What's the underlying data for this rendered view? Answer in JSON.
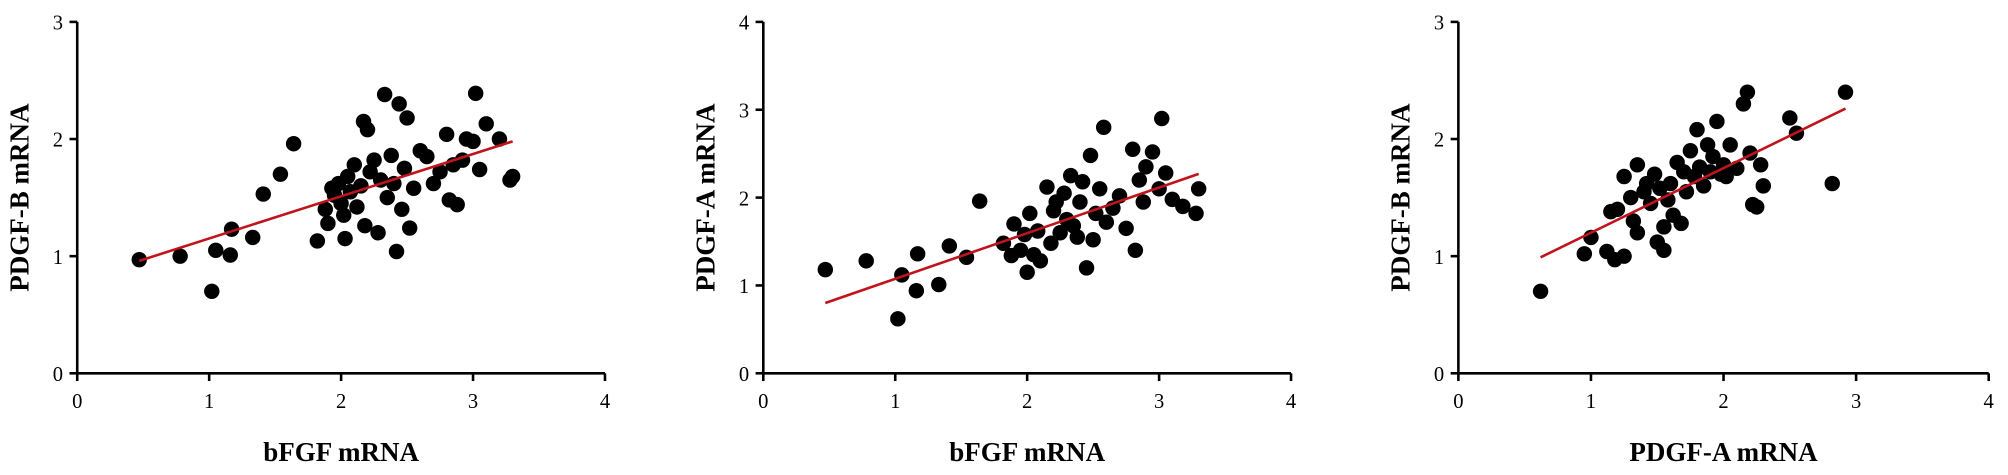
{
  "chart_data": [
    {
      "type": "scatter",
      "xlabel": "bFGF mRNA",
      "ylabel": "PDGF-B mRNA",
      "color": "#000000",
      "xlim": [
        0,
        4
      ],
      "ylim": [
        0,
        3
      ],
      "xticks": [
        0,
        1,
        2,
        3,
        4
      ],
      "yticks": [
        0,
        1,
        2,
        3
      ],
      "x": [
        0.47,
        0.78,
        1.02,
        1.05,
        1.16,
        1.17,
        1.33,
        1.41,
        1.54,
        1.64,
        1.82,
        1.88,
        1.9,
        1.93,
        1.95,
        1.98,
        2.0,
        2.02,
        2.03,
        2.05,
        2.07,
        2.1,
        2.12,
        2.15,
        2.17,
        2.18,
        2.2,
        2.22,
        2.25,
        2.28,
        2.3,
        2.33,
        2.35,
        2.38,
        2.4,
        2.42,
        2.44,
        2.46,
        2.48,
        2.5,
        2.52,
        2.55,
        2.6,
        2.65,
        2.7,
        2.75,
        2.8,
        2.82,
        2.85,
        2.88,
        2.92,
        2.95,
        3.0,
        3.02,
        3.05,
        3.1,
        3.2,
        3.28,
        3.3
      ],
      "values": [
        0.97,
        1.0,
        0.7,
        1.05,
        1.01,
        1.23,
        1.16,
        1.53,
        1.7,
        1.96,
        1.13,
        1.4,
        1.28,
        1.58,
        1.52,
        1.62,
        1.45,
        1.35,
        1.15,
        1.68,
        1.55,
        1.78,
        1.42,
        1.6,
        2.15,
        1.26,
        2.08,
        1.72,
        1.82,
        1.2,
        1.65,
        2.38,
        1.5,
        1.86,
        1.62,
        1.04,
        2.3,
        1.4,
        1.75,
        2.18,
        1.24,
        1.58,
        1.9,
        1.85,
        1.62,
        1.72,
        2.04,
        1.48,
        1.78,
        1.44,
        1.82,
        2.0,
        1.98,
        2.39,
        1.74,
        2.13,
        2.0,
        1.65,
        1.68
      ],
      "trend": {
        "x": [
          0.47,
          3.3
        ],
        "values": [
          0.96,
          1.98
        ],
        "color": "#c0141c"
      }
    },
    {
      "type": "scatter",
      "xlabel": "bFGF mRNA",
      "ylabel": "PDGF-A mRNA",
      "color": "#000000",
      "xlim": [
        0,
        4
      ],
      "ylim": [
        0,
        4
      ],
      "xticks": [
        0,
        1,
        2,
        3,
        4
      ],
      "yticks": [
        0,
        1,
        2,
        3,
        4
      ],
      "x": [
        0.47,
        0.78,
        1.02,
        1.05,
        1.16,
        1.17,
        1.33,
        1.41,
        1.54,
        1.64,
        1.82,
        1.88,
        1.9,
        1.95,
        1.98,
        2.0,
        2.02,
        2.05,
        2.08,
        2.1,
        2.15,
        2.18,
        2.2,
        2.22,
        2.25,
        2.28,
        2.3,
        2.33,
        2.35,
        2.38,
        2.4,
        2.42,
        2.45,
        2.48,
        2.5,
        2.52,
        2.55,
        2.58,
        2.6,
        2.65,
        2.7,
        2.75,
        2.8,
        2.82,
        2.85,
        2.88,
        2.9,
        2.95,
        3.0,
        3.02,
        3.05,
        3.1,
        3.18,
        3.28,
        3.3
      ],
      "values": [
        1.18,
        1.28,
        0.62,
        1.12,
        0.94,
        1.36,
        1.01,
        1.45,
        1.32,
        1.96,
        1.48,
        1.34,
        1.7,
        1.4,
        1.58,
        1.15,
        1.82,
        1.35,
        1.62,
        1.28,
        2.12,
        1.48,
        1.85,
        1.95,
        1.6,
        2.05,
        1.75,
        2.25,
        1.68,
        1.55,
        1.95,
        2.18,
        1.2,
        2.48,
        1.52,
        1.82,
        2.1,
        2.8,
        1.72,
        1.88,
        2.02,
        1.65,
        2.55,
        1.4,
        2.2,
        1.95,
        2.35,
        2.52,
        2.1,
        2.9,
        2.28,
        1.98,
        1.9,
        1.82,
        2.1
      ],
      "trend": {
        "x": [
          0.47,
          3.3
        ],
        "values": [
          0.8,
          2.27
        ],
        "color": "#c0141c"
      }
    },
    {
      "type": "scatter",
      "xlabel": "PDGF-A mRNA",
      "ylabel": "PDGF-B mRNA",
      "color": "#000000",
      "xlim": [
        0,
        4
      ],
      "ylim": [
        0,
        3
      ],
      "xticks": [
        0,
        1,
        2,
        3,
        4
      ],
      "yticks": [
        0,
        1,
        2,
        3
      ],
      "x": [
        0.62,
        0.95,
        1.0,
        1.12,
        1.15,
        1.18,
        1.2,
        1.25,
        1.25,
        1.3,
        1.32,
        1.35,
        1.35,
        1.4,
        1.42,
        1.45,
        1.48,
        1.5,
        1.52,
        1.55,
        1.55,
        1.58,
        1.6,
        1.62,
        1.65,
        1.68,
        1.7,
        1.72,
        1.75,
        1.78,
        1.8,
        1.82,
        1.85,
        1.88,
        1.9,
        1.92,
        1.95,
        1.98,
        2.0,
        2.02,
        2.05,
        2.1,
        2.15,
        2.18,
        2.2,
        2.22,
        2.25,
        2.28,
        2.3,
        2.5,
        2.55,
        2.82,
        2.92
      ],
      "values": [
        0.7,
        1.02,
        1.16,
        1.04,
        1.38,
        0.97,
        1.4,
        1.0,
        1.68,
        1.5,
        1.3,
        1.78,
        1.2,
        1.55,
        1.62,
        1.45,
        1.7,
        1.12,
        1.58,
        1.05,
        1.25,
        1.48,
        1.62,
        1.35,
        1.8,
        1.28,
        1.72,
        1.55,
        1.9,
        1.68,
        2.08,
        1.76,
        1.6,
        1.95,
        1.72,
        1.85,
        2.15,
        1.7,
        1.78,
        1.68,
        1.95,
        1.75,
        2.3,
        2.4,
        1.88,
        1.44,
        1.42,
        1.78,
        1.6,
        2.18,
        2.05,
        1.62,
        2.4
      ],
      "trend": {
        "x": [
          0.62,
          2.92
        ],
        "values": [
          0.99,
          2.26
        ],
        "color": "#c0141c"
      }
    }
  ]
}
